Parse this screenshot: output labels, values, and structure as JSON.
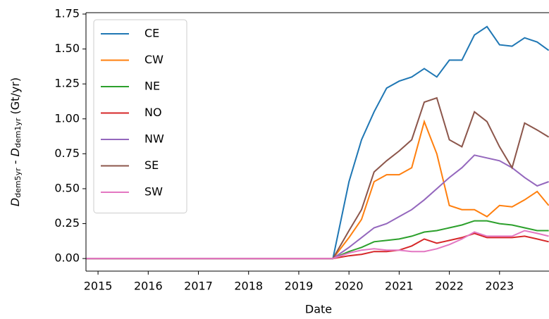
{
  "chart_data": {
    "type": "line",
    "xlabel": "Date",
    "ylabel_parts": [
      "D",
      "dem5yr",
      " - ",
      "D",
      "dem1yr",
      " (Gt/yr)"
    ],
    "x": [
      2014.76,
      2019.68,
      2020.0,
      2020.25,
      2020.5,
      2020.75,
      2021.0,
      2021.25,
      2021.5,
      2021.75,
      2022.0,
      2022.25,
      2022.5,
      2022.75,
      2023.0,
      2023.25,
      2023.5,
      2023.75,
      2023.98
    ],
    "series": [
      {
        "name": "CE",
        "color": "#1f77b4",
        "values": [
          0,
          0,
          0.55,
          0.85,
          1.05,
          1.22,
          1.27,
          1.3,
          1.36,
          1.3,
          1.42,
          1.42,
          1.6,
          1.66,
          1.53,
          1.52,
          1.58,
          1.55,
          1.49
        ]
      },
      {
        "name": "CW",
        "color": "#ff7f0e",
        "values": [
          0,
          0,
          0.15,
          0.28,
          0.55,
          0.6,
          0.6,
          0.65,
          0.98,
          0.75,
          0.38,
          0.35,
          0.35,
          0.3,
          0.38,
          0.37,
          0.42,
          0.48,
          0.38
        ]
      },
      {
        "name": "NE",
        "color": "#2ca02c",
        "values": [
          0,
          0,
          0.05,
          0.08,
          0.12,
          0.13,
          0.14,
          0.16,
          0.19,
          0.2,
          0.22,
          0.24,
          0.27,
          0.27,
          0.25,
          0.24,
          0.22,
          0.2,
          0.2
        ]
      },
      {
        "name": "NO",
        "color": "#d62728",
        "values": [
          0,
          0,
          0.02,
          0.03,
          0.05,
          0.05,
          0.06,
          0.09,
          0.14,
          0.11,
          0.13,
          0.15,
          0.18,
          0.15,
          0.15,
          0.15,
          0.16,
          0.14,
          0.12
        ]
      },
      {
        "name": "NW",
        "color": "#9467bd",
        "values": [
          0,
          0,
          0.08,
          0.15,
          0.22,
          0.25,
          0.3,
          0.35,
          0.42,
          0.5,
          0.58,
          0.65,
          0.74,
          0.72,
          0.7,
          0.65,
          0.58,
          0.52,
          0.55
        ]
      },
      {
        "name": "SE",
        "color": "#8c564b",
        "values": [
          0,
          0,
          0.2,
          0.35,
          0.62,
          0.7,
          0.77,
          0.85,
          1.12,
          1.15,
          0.85,
          0.8,
          1.05,
          0.98,
          0.8,
          0.65,
          0.97,
          0.92,
          0.87
        ]
      },
      {
        "name": "SW",
        "color": "#e377c2",
        "values": [
          0,
          0,
          0.04,
          0.06,
          0.07,
          0.06,
          0.06,
          0.05,
          0.05,
          0.07,
          0.1,
          0.14,
          0.19,
          0.16,
          0.16,
          0.16,
          0.2,
          0.18,
          0.16
        ]
      }
    ],
    "xlim": [
      2014.76,
      2024.14
    ],
    "xticks": [
      2015,
      2016,
      2017,
      2018,
      2019,
      2020,
      2021,
      2022,
      2023
    ],
    "ylim": [
      -0.09,
      1.76
    ],
    "yticks": [
      {
        "value": 0,
        "label": "0.00"
      },
      {
        "value": 0.25,
        "label": "0.25"
      },
      {
        "value": 0.5,
        "label": "0.50"
      },
      {
        "value": 0.75,
        "label": "0.75"
      },
      {
        "value": 1,
        "label": "1.00"
      },
      {
        "value": 1.25,
        "label": "1.25"
      },
      {
        "value": 1.5,
        "label": "1.50"
      },
      {
        "value": 1.75,
        "label": "1.75"
      }
    ],
    "legend": "upper left",
    "grid": false
  }
}
